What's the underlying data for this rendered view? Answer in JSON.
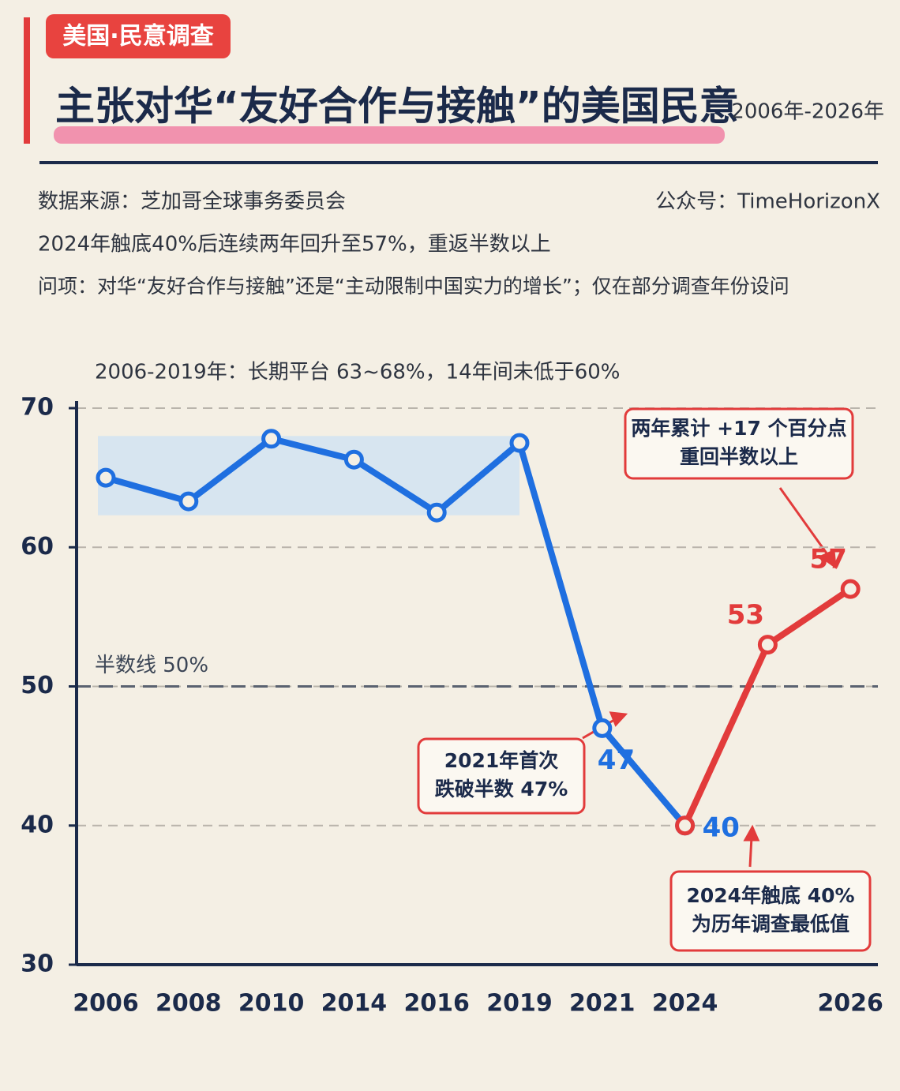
{
  "header": {
    "tag": "美国·民意调查",
    "title": "主张对华“友好合作与接触”的美国民意",
    "period": "2006年-2026年",
    "source": "数据来源：芝加哥全球事务委员会",
    "account": "公众号：TimeHorizonX",
    "summary": "2024年触底40%后连续两年回升至57%，重返半数以上",
    "question": "问项：对华“友好合作与接触”还是“主动限制中国实力的增长”；仅在部分调查年份设问"
  },
  "chart_data": {
    "type": "line",
    "categories": [
      "2006",
      "2008",
      "2010",
      "2014",
      "2016",
      "2019",
      "2021",
      "2024",
      null,
      "2026"
    ],
    "series": [
      {
        "color": "#1f6fe0",
        "values": [
          65,
          63.3,
          67.8,
          66.3,
          62.5,
          67.5,
          47,
          40,
          null,
          null
        ],
        "value_labels": [
          null,
          null,
          null,
          null,
          null,
          null,
          "47",
          "40",
          null,
          null
        ]
      },
      {
        "color": "#e23b3b",
        "values": [
          null,
          null,
          null,
          null,
          null,
          null,
          null,
          40,
          53,
          57
        ],
        "value_labels": [
          null,
          null,
          null,
          null,
          null,
          null,
          null,
          null,
          "53",
          "57"
        ]
      }
    ],
    "ylim": [
      30,
      70
    ],
    "yticks": [
      30,
      40,
      50,
      60,
      70
    ],
    "grid": true,
    "band": {
      "ylim": [
        62.3,
        68
      ],
      "color": "#cfe2f3",
      "label": "2006-2019年：长期平台 63~68%，14年间未低于60%"
    },
    "hline": {
      "value": 50,
      "label": "半数线 50%"
    },
    "annotations": [
      {
        "lines": [
          "两年累计 +17 个百分点",
          "重回半数以上"
        ]
      },
      {
        "lines": [
          "2021年首次",
          "跌破半数 47%"
        ]
      },
      {
        "lines": [
          "2024年触底 40%",
          "为历年调查最低值"
        ]
      }
    ]
  }
}
